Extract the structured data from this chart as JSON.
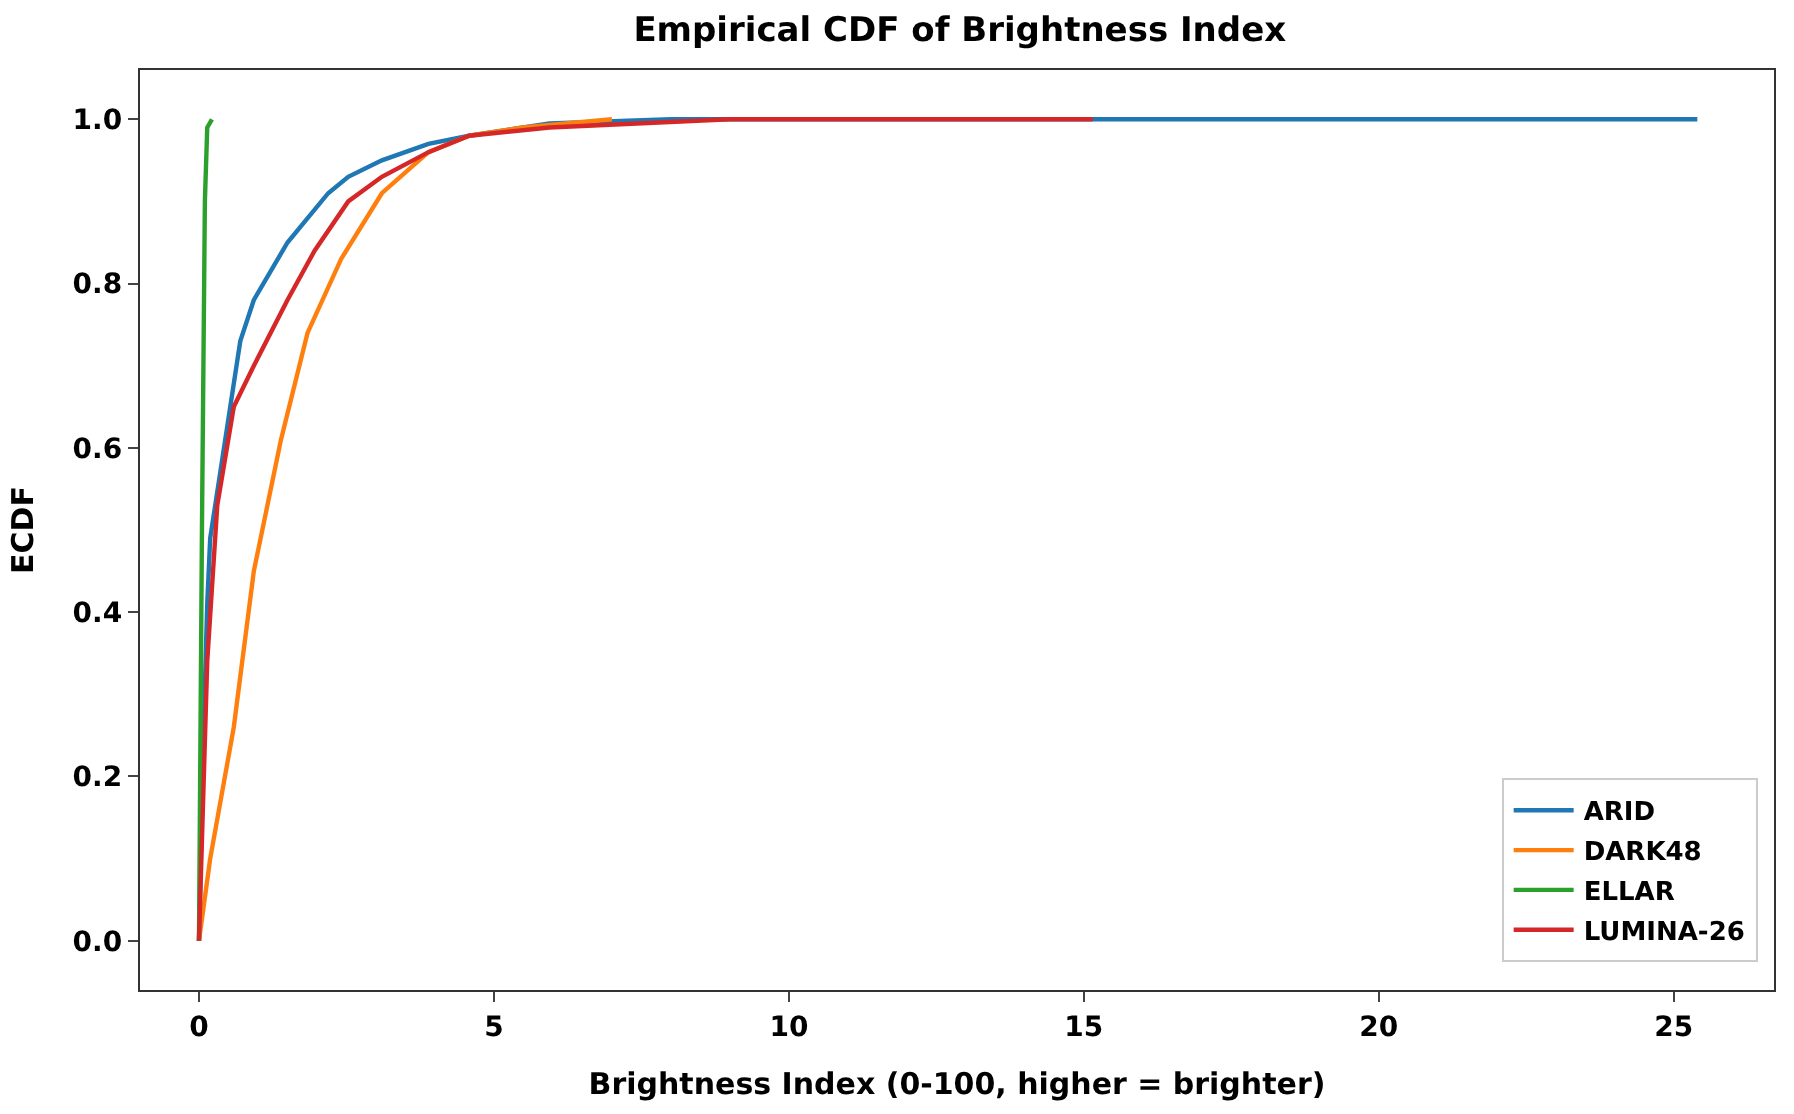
{
  "chart_data": {
    "type": "line",
    "title": "Empirical CDF of Brightness Index",
    "xlabel": "Brightness Index (0-100, higher = brighter)",
    "ylabel": "ECDF",
    "xlim": [
      -1.0,
      26.7
    ],
    "ylim": [
      -0.06,
      1.06
    ],
    "xticks": [
      0,
      5,
      10,
      15,
      20,
      25
    ],
    "yticks": [
      {
        "value": 0,
        "label": "0.0"
      },
      {
        "value": 0.2,
        "label": "0.2"
      },
      {
        "value": 0.4,
        "label": "0.4"
      },
      {
        "value": 0.6,
        "label": "0.6"
      },
      {
        "value": 0.8,
        "label": "0.8"
      },
      {
        "value": 1,
        "label": "1.0"
      }
    ],
    "grid": false,
    "legend": "bottom right",
    "marker": "none",
    "line_style": "solid",
    "series": [
      {
        "name": "ARID",
        "color": "#1f77b4",
        "x": [
          0,
          0.08,
          0.14,
          0.19,
          0.7,
          0.93,
          1.5,
          2.19,
          2.53,
          3.1,
          3.89,
          4.58,
          5.94,
          8,
          25.4
        ],
        "values": [
          0,
          0.26,
          0.41,
          0.49,
          0.73,
          0.78,
          0.85,
          0.91,
          0.93,
          0.95,
          0.97,
          0.98,
          0.995,
          1.0,
          1.0
        ]
      },
      {
        "name": "DARK48",
        "color": "#ff7f0e",
        "x": [
          0,
          0.19,
          0.59,
          0.93,
          1.39,
          1.84,
          2.41,
          3.1,
          3.89,
          4.58,
          5.49,
          7
        ],
        "values": [
          0,
          0.1,
          0.26,
          0.45,
          0.61,
          0.74,
          0.83,
          0.91,
          0.96,
          0.98,
          0.99,
          1.0
        ]
      },
      {
        "name": "ELLAR",
        "color": "#2ca02c",
        "x": [
          0,
          0.05,
          0.1,
          0.14,
          0.22
        ],
        "values": [
          0,
          0.5,
          0.9,
          0.99,
          1.0
        ]
      },
      {
        "name": "LUMINA-26",
        "color": "#d62728",
        "x": [
          0,
          0.14,
          0.31,
          0.59,
          0.93,
          1.5,
          1.96,
          2.53,
          3.1,
          3.89,
          4.58,
          5.94,
          9,
          15.15
        ],
        "values": [
          0,
          0.34,
          0.53,
          0.65,
          0.7,
          0.78,
          0.84,
          0.9,
          0.93,
          0.96,
          0.98,
          0.99,
          1.0,
          1.0
        ]
      }
    ]
  }
}
